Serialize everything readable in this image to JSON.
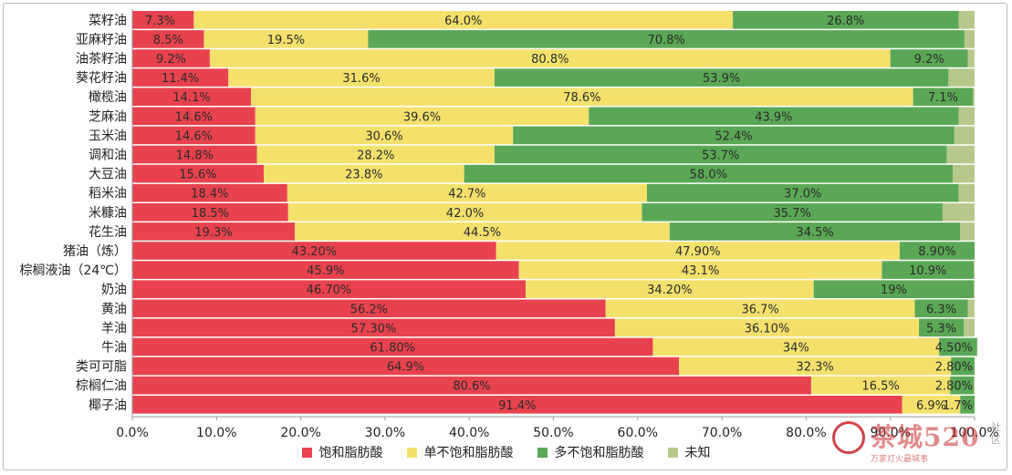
{
  "chart_data": {
    "type": "bar",
    "orientation": "horizontal",
    "stacked": true,
    "title": "",
    "xlabel": "",
    "ylabel": "",
    "xlim": [
      0,
      100
    ],
    "x_ticks": [
      "0.0%",
      "10.0%",
      "20.0%",
      "30.0%",
      "40.0%",
      "50.0%",
      "60.0%",
      "70.0%",
      "80.0%",
      "90.0%",
      "100.0%"
    ],
    "grid": false,
    "legend_position": "bottom",
    "categories": [
      "菜籽油",
      "亚麻籽油",
      "油茶籽油",
      "葵花籽油",
      "橄榄油",
      "芝麻油",
      "玉米油",
      "调和油",
      "大豆油",
      "稻米油",
      "米糠油",
      "花生油",
      "猪油（炼）",
      "棕榈液油（24℃）",
      "奶油",
      "黄油",
      "羊油",
      "牛油",
      "类可可脂",
      "棕榈仁油",
      "椰子油"
    ],
    "series": [
      {
        "name": "饱和脂肪酸",
        "color": "#e8424f",
        "values": [
          7.3,
          8.5,
          9.2,
          11.4,
          14.1,
          14.6,
          14.6,
          14.8,
          15.6,
          18.4,
          18.5,
          19.3,
          43.2,
          45.9,
          46.7,
          56.2,
          57.3,
          61.8,
          64.9,
          80.6,
          91.4
        ],
        "labels": [
          "7.3%",
          "8.5%",
          "9.2%",
          "11.4%",
          "14.1%",
          "14.6%",
          "14.6%",
          "14.8%",
          "15.6%",
          "18.4%",
          "18.5%",
          "19.3%",
          "43.20%",
          "45.9%",
          "46.70%",
          "56.2%",
          "57.30%",
          "61.80%",
          "64.9%",
          "80.6%",
          "91.4%"
        ]
      },
      {
        "name": "单不饱和脂肪酸",
        "color": "#f3e16c",
        "values": [
          64.0,
          19.5,
          80.8,
          31.6,
          78.6,
          39.6,
          30.6,
          28.2,
          23.8,
          42.7,
          42.0,
          44.5,
          47.9,
          43.1,
          34.2,
          36.7,
          36.1,
          34.0,
          32.3,
          16.5,
          6.9
        ],
        "labels": [
          "64.0%",
          "19.5%",
          "80.8%",
          "31.6%",
          "78.6%",
          "39.6%",
          "30.6%",
          "28.2%",
          "23.8%",
          "42.7%",
          "42.0%",
          "44.5%",
          "47.90%",
          "43.1%",
          "34.20%",
          "36.7%",
          "36.10%",
          "34%",
          "32.3%",
          "16.5%",
          "6.9%"
        ]
      },
      {
        "name": "多不饱和脂肪酸",
        "color": "#5aa855",
        "values": [
          26.8,
          70.8,
          9.2,
          53.9,
          7.1,
          43.9,
          52.4,
          53.7,
          58.0,
          37.0,
          35.7,
          34.5,
          8.9,
          10.9,
          19.0,
          6.3,
          5.3,
          4.5,
          2.8,
          2.8,
          1.7
        ],
        "labels": [
          "26.8%",
          "70.8%",
          "9.2%",
          "53.9%",
          "7.1%",
          "43.9%",
          "52.4%",
          "53.7%",
          "58.0%",
          "37.0%",
          "35.7%",
          "34.5%",
          "8.90%",
          "10.9%",
          "19%",
          "6.3%",
          "5.3%",
          "4.50%",
          "2.80%",
          "2.80%",
          "1.7%"
        ]
      },
      {
        "name": "未知",
        "color": "#b7c98a",
        "values": [
          1.9,
          1.2,
          0.8,
          3.1,
          0.2,
          1.9,
          2.4,
          3.3,
          2.6,
          1.9,
          3.8,
          1.7,
          0.0,
          0.1,
          0.1,
          0.8,
          1.3,
          0.0,
          0.0,
          0.1,
          0.0
        ],
        "labels": [
          "",
          "",
          "",
          "",
          "",
          "",
          "",
          "",
          "",
          "",
          "",
          "",
          "",
          "",
          "",
          "",
          "",
          "",
          "",
          "",
          ""
        ]
      }
    ]
  },
  "watermark": {
    "text": "茶城520",
    "sub": "万家灯火最城事",
    "side": "社区"
  }
}
